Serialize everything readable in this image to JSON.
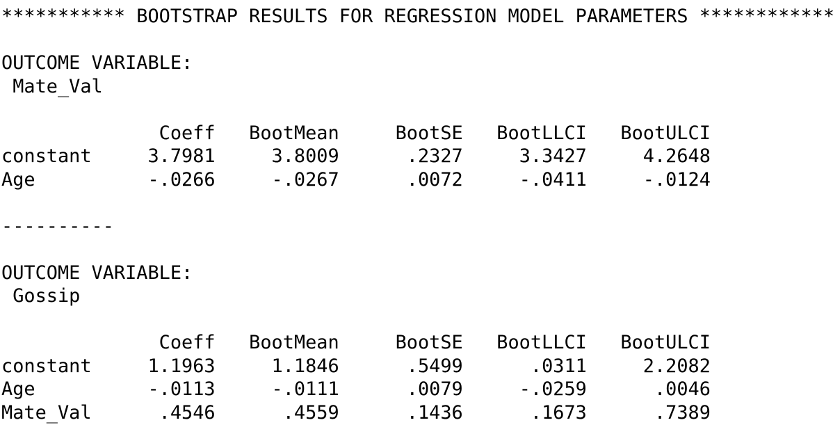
{
  "colors": {
    "background": "#ffffff",
    "text": "#000000"
  },
  "output": {
    "banner": {
      "stars_left": "***********",
      "title": "BOOTSTRAP RESULTS FOR REGRESSION MODEL PARAMETERS",
      "stars_right": "************"
    },
    "outcome_heading": "OUTCOME VARIABLE:",
    "separator": "----------",
    "sections": [
      {
        "outcome_variable": "Mate_Val",
        "columns": [
          "Coeff",
          "BootMean",
          "BootSE",
          "BootLLCI",
          "BootULCI"
        ],
        "rows": [
          {
            "label": "constant",
            "values": [
              "3.7981",
              "3.8009",
              ".2327",
              "3.3427",
              "4.2648"
            ]
          },
          {
            "label": "Age",
            "values": [
              "-.0266",
              "-.0267",
              ".0072",
              "-.0411",
              "-.0124"
            ]
          }
        ]
      },
      {
        "outcome_variable": "Gossip",
        "columns": [
          "Coeff",
          "BootMean",
          "BootSE",
          "BootLLCI",
          "BootULCI"
        ],
        "rows": [
          {
            "label": "constant",
            "values": [
              "1.1963",
              "1.1846",
              ".5499",
              ".0311",
              "2.2082"
            ]
          },
          {
            "label": "Age",
            "values": [
              "-.0113",
              "-.0111",
              ".0079",
              "-.0259",
              ".0046"
            ]
          },
          {
            "label": "Mate_Val",
            "values": [
              ".4546",
              ".4559",
              ".1436",
              ".1673",
              ".7389"
            ]
          }
        ]
      }
    ]
  }
}
